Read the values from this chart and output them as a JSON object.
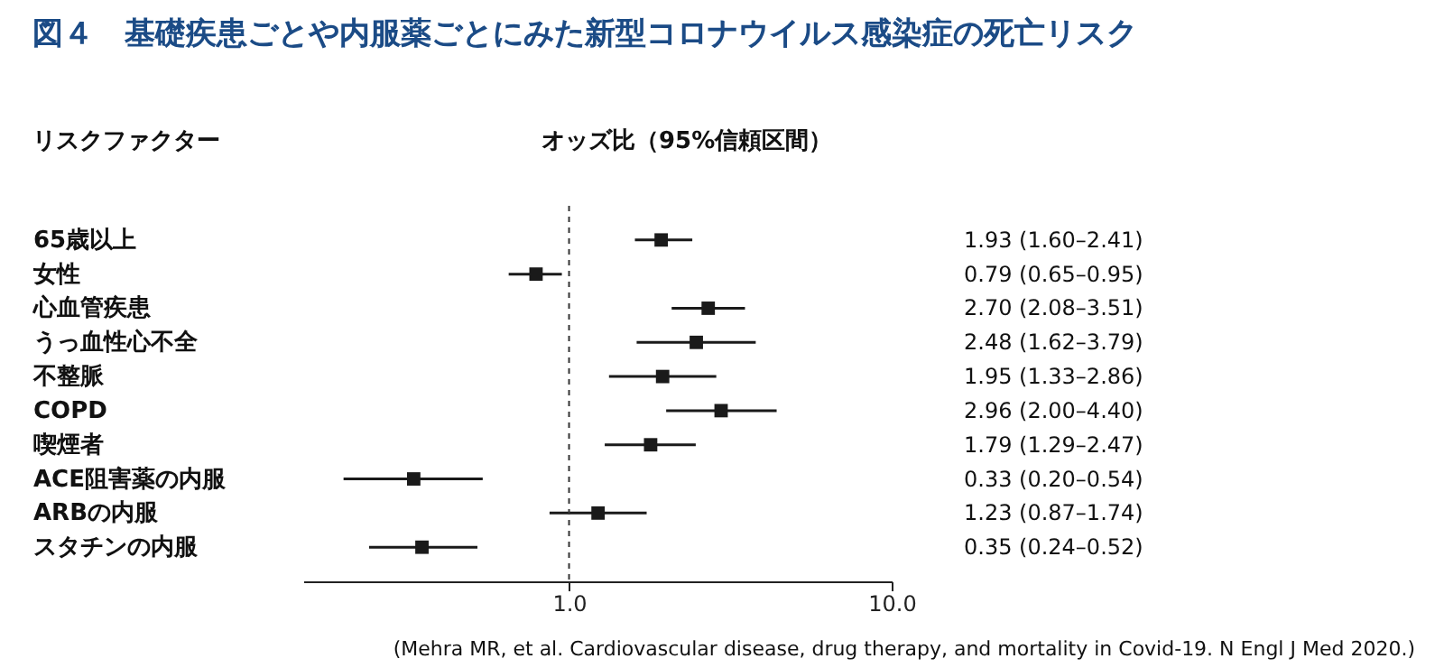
{
  "chart_data": {
    "type": "scatter",
    "orientation": "horizontal",
    "title": "図４　基礎疾患ごとや内服薬ごとにみた新型コロナウイルス感染症の死亡リスク",
    "ylabel": "リスクファクター",
    "xlabel": "オッズ比（95%信頼区間）",
    "categories": [
      "65歳以上",
      "女性",
      "心血管疾患",
      "うっ血性心不全",
      "不整脈",
      "COPD",
      "喫煙者",
      "ACE阻害薬の内服",
      "ARBの内服",
      "スタチンの内服"
    ],
    "values": [
      1.93,
      0.79,
      2.7,
      2.48,
      1.95,
      2.96,
      1.79,
      0.33,
      1.23,
      0.35
    ],
    "errors": [
      [
        1.6,
        2.41
      ],
      [
        0.65,
        0.95
      ],
      [
        2.08,
        3.51
      ],
      [
        1.62,
        3.79
      ],
      [
        1.33,
        2.86
      ],
      [
        2.0,
        4.4
      ],
      [
        1.29,
        2.47
      ],
      [
        0.2,
        0.54
      ],
      [
        0.87,
        1.74
      ],
      [
        0.24,
        0.52
      ]
    ],
    "value_labels": [
      "1.93 (1.60–2.41)",
      "0.79 (0.65–0.95)",
      "2.70 (2.08–3.51)",
      "2.48 (1.62–3.79)",
      "1.95 (1.33–2.86)",
      "2.96 (2.00–4.40)",
      "1.79 (1.29–2.47)",
      "0.33 (0.20–0.54)",
      "1.23 (0.87–1.74)",
      "0.35 (0.24–0.52)"
    ],
    "color": "#1a1a1a",
    "marker": "square",
    "log": "x",
    "xlim": [
      0.15,
      10
    ],
    "xticks": [
      {
        "value": 1,
        "label": "1.0"
      },
      {
        "value": 10,
        "label": "10.0"
      }
    ],
    "ref_lines": [
      {
        "axis": "x",
        "value": 1,
        "line_style": "dashed",
        "color": "#333333"
      }
    ],
    "grid": false,
    "legend": false,
    "annotations": [
      "(Mehra MR, et al. Cardiovascular disease, drug therapy, and mortality in Covid-19. N Engl J Med  2020.)"
    ]
  }
}
